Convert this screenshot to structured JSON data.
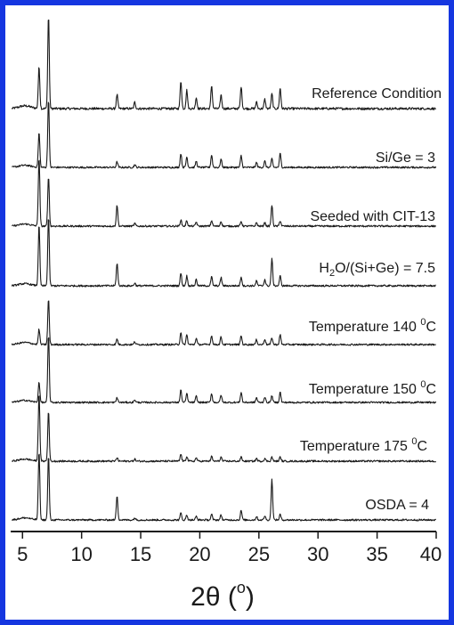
{
  "chart_data": {
    "type": "line",
    "title": "",
    "xlabel": "2θ (°)",
    "ylabel": "",
    "xlim": [
      4,
      40
    ],
    "xticks": [
      5,
      10,
      15,
      20,
      25,
      30,
      35,
      40
    ],
    "grid": false,
    "colors": {
      "frame": "#1536e0",
      "trace": "#1a1a1a"
    },
    "peak_positions": [
      6.4,
      7.2,
      13.0,
      14.5,
      18.4,
      18.9,
      19.7,
      21.0,
      21.8,
      23.5,
      24.8,
      25.5,
      26.1,
      26.8
    ],
    "series": [
      {
        "name": "Reference Condition",
        "intensities": [
          0.45,
          1.0,
          0.15,
          0.07,
          0.3,
          0.2,
          0.12,
          0.25,
          0.15,
          0.24,
          0.07,
          0.1,
          0.16,
          0.22
        ]
      },
      {
        "name": "Si/Ge = 3",
        "intensities": [
          0.5,
          0.98,
          0.08,
          0.04,
          0.2,
          0.15,
          0.09,
          0.18,
          0.12,
          0.17,
          0.07,
          0.09,
          0.12,
          0.2
        ]
      },
      {
        "name": "Seeded with CIT-13",
        "intensities": [
          0.98,
          0.72,
          0.3,
          0.04,
          0.09,
          0.08,
          0.06,
          0.08,
          0.07,
          0.07,
          0.05,
          0.05,
          0.3,
          0.08
        ]
      },
      {
        "name": "H2O/(Si+Ge) = 7.5",
        "intensities": [
          0.86,
          0.98,
          0.32,
          0.04,
          0.18,
          0.14,
          0.09,
          0.13,
          0.12,
          0.13,
          0.07,
          0.09,
          0.38,
          0.14
        ]
      },
      {
        "name": "Temperature 140 °C",
        "intensities": [
          0.22,
          0.65,
          0.08,
          0.04,
          0.18,
          0.14,
          0.09,
          0.13,
          0.11,
          0.13,
          0.07,
          0.08,
          0.1,
          0.14
        ]
      },
      {
        "name": "Temperature 150 °C",
        "intensities": [
          0.3,
          0.98,
          0.07,
          0.04,
          0.18,
          0.13,
          0.09,
          0.13,
          0.11,
          0.15,
          0.07,
          0.08,
          0.1,
          0.15
        ]
      },
      {
        "name": "Temperature 175 °C",
        "intensities": [
          0.98,
          0.72,
          0.05,
          0.03,
          0.1,
          0.07,
          0.05,
          0.07,
          0.06,
          0.06,
          0.04,
          0.04,
          0.06,
          0.06
        ]
      },
      {
        "name": "OSDA = 4",
        "intensities": [
          0.98,
          0.92,
          0.35,
          0.03,
          0.1,
          0.07,
          0.05,
          0.08,
          0.07,
          0.14,
          0.05,
          0.06,
          0.58,
          0.08
        ]
      }
    ],
    "annotations": [
      {
        "series": 0,
        "text": "Reference Condition"
      },
      {
        "series": 1,
        "text": "Si/Ge = 3"
      },
      {
        "series": 2,
        "text": "Seeded with CIT-13"
      },
      {
        "series": 3,
        "text_main": "H",
        "text_sub": "2",
        "text_rest": "O/(Si+Ge) = 7.5"
      },
      {
        "series": 4,
        "text_main": "Temperature 140 ",
        "text_sup": "0",
        "text_rest": "C"
      },
      {
        "series": 5,
        "text_main": "Temperature 150 ",
        "text_sup": "0",
        "text_rest": "C"
      },
      {
        "series": 6,
        "text_main": "Temperature 175 ",
        "text_sup": "0",
        "text_rest": "C"
      },
      {
        "series": 7,
        "text": "OSDA = 4"
      }
    ],
    "xlabel_parts": {
      "main": "2θ (",
      "sup": "o",
      "rest": ")"
    }
  }
}
